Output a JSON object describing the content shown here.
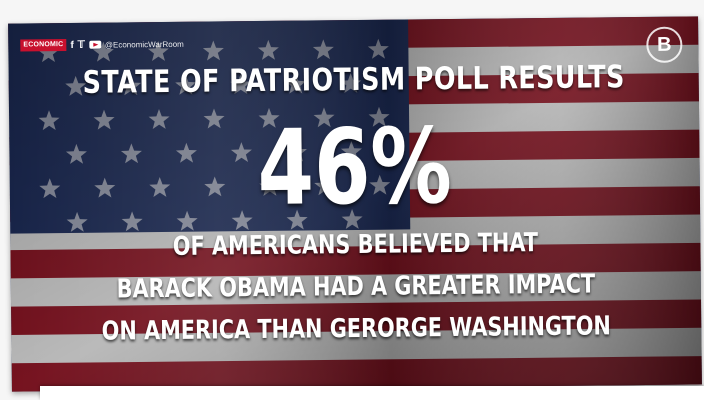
{
  "header": {
    "brand": "ECONOMIC",
    "brand_sub": "WAR ROOM",
    "facebook_glyph": "f",
    "twitter_glyph": "🐦",
    "handle": "@EconomicWarRoom",
    "logo_letter": "B"
  },
  "graphic": {
    "headline": "STATE OF PATRIOTISM POLL RESULTS",
    "stat": "46%",
    "lines": [
      "OF AMERICANS BELIEVED THAT",
      "BARACK OBAMA HAD A GREATER IMPACT",
      "ON AMERICA THAN GERORGE WASHINGTON"
    ]
  },
  "colors": {
    "canton": "#1f2f5e",
    "stripe_red": "#8a1524",
    "stripe_white": "#d9d9d9",
    "brand_red": "#c8102e"
  }
}
